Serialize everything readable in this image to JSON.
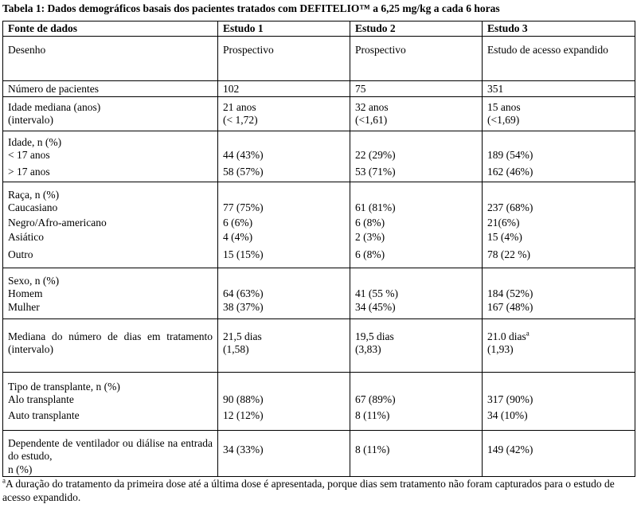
{
  "title": "Tabela 1: Dados demográficos basais dos pacientes tratados com DEFITELIO™ a 6,25 mg/kg a cada 6 horas",
  "header": [
    "Fonte de dados",
    "Estudo 1",
    "Estudo 2",
    "Estudo 3"
  ],
  "rows": {
    "desenho": {
      "label": "Desenho",
      "s1": "Prospectivo",
      "s2": "Prospectivo",
      "s3": "Estudo de acesso expandido"
    },
    "num_pacientes": {
      "label": "Número de pacientes",
      "s1": "102",
      "s2": "75",
      "s3": "351"
    },
    "idade_mediana": {
      "label1": "Idade mediana (anos)",
      "label2": "(intervalo)",
      "s1a": "21 anos",
      "s1b": "(< 1,72)",
      "s2a": "32 anos",
      "s2b": "(<1,61)",
      "s3a": "15 anos",
      "s3b": "(<1,69)"
    },
    "idade": {
      "heading": "Idade, n (%)",
      "lt17": {
        "label": "< 17 anos",
        "s1": "44 (43%)",
        "s2": "22 (29%)",
        "s3": "189 (54%)"
      },
      "gt17": {
        "label": "> 17 anos",
        "s1": "58 (57%)",
        "s2": "53 (71%)",
        "s3": "162 (46%)"
      }
    },
    "raca": {
      "heading": "Raça, n (%)",
      "caucasiano": {
        "label": "Caucasiano",
        "s1": "77 (75%)",
        "s2": "61 (81%)",
        "s3": "237 (68%)"
      },
      "negro": {
        "label": "Negro/Afro-americano",
        "s1": "6 (6%)",
        "s2": "6 (8%)",
        "s3": "21(6%)"
      },
      "asiatico": {
        "label": "Asiático",
        "s1": "4 (4%)",
        "s2": "2 (3%)",
        "s3": "15 (4%)"
      },
      "outro": {
        "label": "Outro",
        "s1": "15 (15%)",
        "s2": "6 (8%)",
        "s3": "78 (22 %)"
      }
    },
    "sexo": {
      "heading": "Sexo, n (%)",
      "homem": {
        "label": "Homem",
        "s1": "64 (63%)",
        "s2": "41 (55 %)",
        "s3": "184 (52%)"
      },
      "mulher": {
        "label": "Mulher",
        "s1": "38 (37%)",
        "s2": "34 (45%)",
        "s3": "167 (48%)"
      }
    },
    "dias": {
      "label": "Mediana do número de dias em tratamento (intervalo)",
      "s1a": "21,5 dias",
      "s1b": "(1,58)",
      "s2a": "19,5 dias",
      "s2b": "(3,83)",
      "s3a": "21.0 dias",
      "s3_sup": "a",
      "s3b": "(1,93)"
    },
    "transplante": {
      "heading": "Tipo de transplante, n (%)",
      "alo": {
        "label": "Alo transplante",
        "s1": "90 (88%)",
        "s2": "67 (89%)",
        "s3": "317 (90%)"
      },
      "auto": {
        "label": "Auto transplante",
        "s1": "12 (12%)",
        "s2": "8 (11%)",
        "s3": "34 (10%)"
      }
    },
    "ventilador": {
      "label": "Dependente de ventilador ou diálise na entrada do estudo,",
      "label2": "n (%)",
      "s1": "34 (33%)",
      "s2": "8 (11%)",
      "s3": "149 (42%)"
    }
  },
  "footnote": {
    "marker": "a",
    "text": "A duração do tratamento da primeira dose até a última dose é apresentada, porque dias sem tratamento não foram capturados para o estudo de acesso expandido."
  }
}
